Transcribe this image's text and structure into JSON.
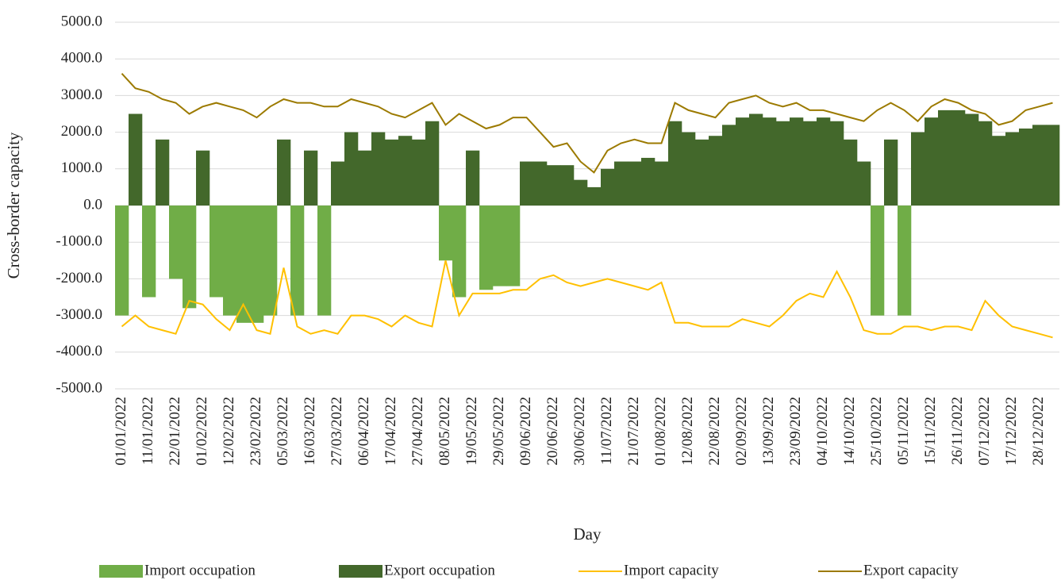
{
  "chart_data": {
    "type": "bar",
    "x_label": "Day",
    "y_label": "Cross-border capacity",
    "categories": [
      "01/01/2022",
      null,
      "11/01/2022",
      null,
      "22/01/2022",
      null,
      "01/02/2022",
      null,
      "12/02/2022",
      null,
      "23/02/2022",
      null,
      "05/03/2022",
      null,
      "16/03/2022",
      null,
      "27/03/2022",
      null,
      "06/04/2022",
      null,
      "17/04/2022",
      null,
      "27/04/2022",
      null,
      "08/05/2022",
      null,
      "19/05/2022",
      null,
      "29/05/2022",
      null,
      "09/06/2022",
      null,
      "20/06/2022",
      null,
      "30/06/2022",
      null,
      "11/07/2022",
      null,
      "21/07/2022",
      null,
      "01/08/2022",
      null,
      "12/08/2022",
      null,
      "22/08/2022",
      null,
      "02/09/2022",
      null,
      "13/09/2022",
      null,
      "23/09/2022",
      null,
      "04/10/2022",
      null,
      "14/10/2022",
      null,
      "25/10/2022",
      null,
      "05/11/2022",
      null,
      "15/11/2022",
      null,
      "26/11/2022",
      null,
      "07/12/2022",
      null,
      "17/12/2022",
      null,
      "28/12/2022",
      null
    ],
    "series": [
      {
        "name": "Import occupation",
        "type": "bar",
        "color": "#70ad47",
        "values": [
          -3000,
          0,
          -2500,
          0,
          -2000,
          -2800,
          0,
          -2500,
          -3000,
          -3200,
          -3200,
          -3000,
          0,
          -3000,
          0,
          -3000,
          0,
          0,
          0,
          0,
          0,
          0,
          0,
          0,
          -1500,
          -2500,
          0,
          -2300,
          -2200,
          -2200,
          0,
          0,
          0,
          0,
          0,
          0,
          0,
          0,
          0,
          0,
          0,
          0,
          0,
          0,
          0,
          0,
          0,
          0,
          0,
          0,
          0,
          0,
          0,
          0,
          0,
          0,
          -3000,
          0,
          -3000,
          0,
          0,
          0,
          0,
          0,
          0,
          0,
          0,
          0,
          0,
          0
        ]
      },
      {
        "name": "Export occupation",
        "type": "bar",
        "color": "#43682b",
        "values": [
          0,
          2500,
          0,
          1800,
          0,
          0,
          1500,
          0,
          0,
          0,
          0,
          0,
          1800,
          0,
          1500,
          0,
          1200,
          2000,
          1500,
          2000,
          1800,
          1900,
          1800,
          2300,
          0,
          0,
          1500,
          0,
          0,
          0,
          1200,
          1200,
          1100,
          1100,
          700,
          500,
          1000,
          1200,
          1200,
          1300,
          1200,
          2300,
          2000,
          1800,
          1900,
          2200,
          2400,
          2500,
          2400,
          2300,
          2400,
          2300,
          2400,
          2300,
          1800,
          1200,
          0,
          1800,
          0,
          2000,
          2400,
          2600,
          2600,
          2500,
          2300,
          1900,
          2000,
          2100,
          2200,
          2200
        ]
      },
      {
        "name": "Import capacity",
        "type": "line",
        "color": "#ffc000",
        "values": [
          -3300,
          -3000,
          -3300,
          -3400,
          -3500,
          -2600,
          -2700,
          -3100,
          -3400,
          -2700,
          -3400,
          -3500,
          -1700,
          -3300,
          -3500,
          -3400,
          -3500,
          -3000,
          -3000,
          -3100,
          -3300,
          -3000,
          -3200,
          -3300,
          -1500,
          -3000,
          -2400,
          -2400,
          -2400,
          -2300,
          -2300,
          -2000,
          -1900,
          -2100,
          -2200,
          -2100,
          -2000,
          -2100,
          -2200,
          -2300,
          -2100,
          -3200,
          -3200,
          -3300,
          -3300,
          -3300,
          -3100,
          -3200,
          -3300,
          -3000,
          -2600,
          -2400,
          -2500,
          -1800,
          -2500,
          -3400,
          -3500,
          -3500,
          -3300,
          -3300,
          -3400,
          -3300,
          -3300,
          -3400,
          -2600,
          -3000,
          -3300,
          -3400,
          -3500,
          -3600
        ]
      },
      {
        "name": "Export capacity",
        "type": "line",
        "color": "#9c7a00",
        "values": [
          3600,
          3200,
          3100,
          2900,
          2800,
          2500,
          2700,
          2800,
          2700,
          2600,
          2400,
          2700,
          2900,
          2800,
          2800,
          2700,
          2700,
          2900,
          2800,
          2700,
          2500,
          2400,
          2600,
          2800,
          2200,
          2500,
          2300,
          2100,
          2200,
          2400,
          2400,
          2000,
          1600,
          1700,
          1200,
          900,
          1500,
          1700,
          1800,
          1700,
          1700,
          2800,
          2600,
          2500,
          2400,
          2800,
          2900,
          3000,
          2800,
          2700,
          2800,
          2600,
          2600,
          2500,
          2400,
          2300,
          2600,
          2800,
          2600,
          2300,
          2700,
          2900,
          2800,
          2600,
          2500,
          2200,
          2300,
          2600,
          2700,
          2800
        ]
      }
    ],
    "ylim": [
      -5000,
      5000
    ],
    "yticks": [
      {
        "value": 5000,
        "label": "5000.0"
      },
      {
        "value": 4000,
        "label": "4000.0"
      },
      {
        "value": 3000,
        "label": "3000.0"
      },
      {
        "value": 2000,
        "label": "2000.0"
      },
      {
        "value": 1000,
        "label": "1000.0"
      },
      {
        "value": 0,
        "label": "0.0"
      },
      {
        "value": -1000,
        "label": "-1000.0"
      },
      {
        "value": -2000,
        "label": "-2000.0"
      },
      {
        "value": -3000,
        "label": "-3000.0"
      },
      {
        "value": -4000,
        "label": "-4000.0"
      },
      {
        "value": -5000,
        "label": "-5000.0"
      }
    ],
    "grid": true,
    "legend": "bottom"
  }
}
